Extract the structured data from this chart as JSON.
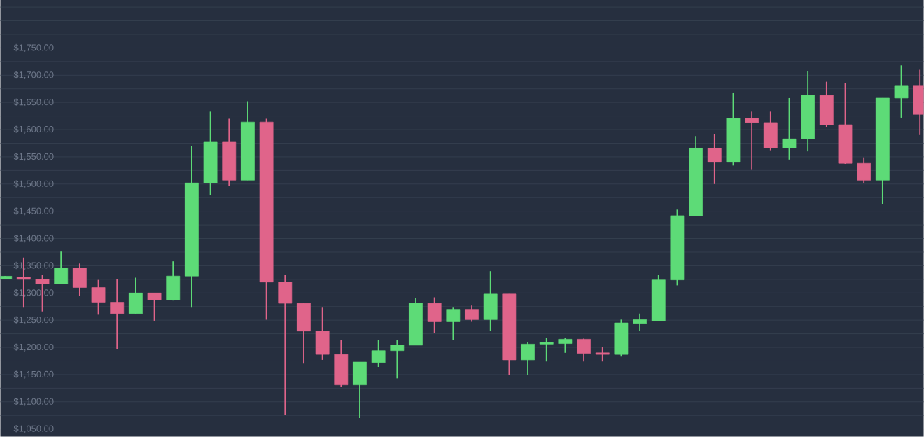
{
  "chart_data": {
    "type": "candlestick",
    "categories": [
      null,
      null,
      null,
      null,
      null,
      null,
      null,
      null,
      null,
      null,
      null,
      null,
      null,
      null,
      null,
      null,
      null,
      null,
      null,
      null,
      null,
      null,
      null,
      null,
      null,
      null,
      null,
      null,
      null,
      null,
      null,
      null,
      null,
      null,
      null,
      null,
      null,
      null,
      null,
      null,
      null,
      null,
      null,
      null,
      null,
      null,
      null,
      null,
      null,
      null
    ],
    "ohlc": [
      [
        1326,
        1331,
        1326,
        1331
      ],
      [
        1329,
        1365,
        1273,
        1325
      ],
      [
        1325,
        1333,
        1266,
        1317
      ],
      [
        1317,
        1376,
        1317,
        1346
      ],
      [
        1346,
        1354,
        1294,
        1310
      ],
      [
        1310,
        1324,
        1260,
        1283
      ],
      [
        1283,
        1326,
        1197,
        1262
      ],
      [
        1262,
        1328,
        1262,
        1300
      ],
      [
        1300,
        1300,
        1249,
        1287
      ],
      [
        1287,
        1358,
        1286,
        1331
      ],
      [
        1331,
        1570,
        1273,
        1502
      ],
      [
        1502,
        1633,
        1480,
        1577
      ],
      [
        1577,
        1620,
        1496,
        1507
      ],
      [
        1507,
        1652,
        1507,
        1614
      ],
      [
        1614,
        1620,
        1251,
        1320
      ],
      [
        1320,
        1333,
        1076,
        1281
      ],
      [
        1281,
        1281,
        1170,
        1230
      ],
      [
        1230,
        1273,
        1177,
        1187
      ],
      [
        1187,
        1214,
        1127,
        1131
      ],
      [
        1131,
        1173,
        1070,
        1173
      ],
      [
        1172,
        1214,
        1164,
        1194
      ],
      [
        1194,
        1213,
        1143,
        1204
      ],
      [
        1204,
        1290,
        1204,
        1281
      ],
      [
        1281,
        1292,
        1226,
        1247
      ],
      [
        1247,
        1273,
        1213,
        1270
      ],
      [
        1270,
        1277,
        1247,
        1251
      ],
      [
        1251,
        1340,
        1230,
        1298
      ],
      [
        1298,
        1298,
        1149,
        1177
      ],
      [
        1177,
        1209,
        1149,
        1206
      ],
      [
        1206,
        1217,
        1174,
        1209
      ],
      [
        1207,
        1217,
        1190,
        1215
      ],
      [
        1215,
        1216,
        1174,
        1189
      ],
      [
        1190,
        1200,
        1174,
        1187
      ],
      [
        1187,
        1251,
        1183,
        1245
      ],
      [
        1244,
        1262,
        1230,
        1251
      ],
      [
        1249,
        1333,
        1249,
        1324
      ],
      [
        1324,
        1453,
        1314,
        1442
      ],
      [
        1442,
        1588,
        1442,
        1566
      ],
      [
        1566,
        1592,
        1500,
        1540
      ],
      [
        1540,
        1667,
        1534,
        1621
      ],
      [
        1621,
        1633,
        1526,
        1613
      ],
      [
        1613,
        1633,
        1562,
        1566
      ],
      [
        1566,
        1658,
        1545,
        1583
      ],
      [
        1583,
        1708,
        1560,
        1663
      ],
      [
        1663,
        1688,
        1605,
        1609
      ],
      [
        1609,
        1686,
        1537,
        1538
      ],
      [
        1538,
        1549,
        1502,
        1507
      ],
      [
        1507,
        1658,
        1463,
        1658
      ],
      [
        1658,
        1718,
        1622,
        1680
      ],
      [
        1680,
        1710,
        1590,
        1628
      ]
    ],
    "colors": [
      "#5ddb77",
      "#e0648a",
      "#e0648a",
      "#5ddb77",
      "#e0648a",
      "#e0648a",
      "#e0648a",
      "#5ddb77",
      "#e0648a",
      "#5ddb77",
      "#5ddb77",
      "#5ddb77",
      "#e0648a",
      "#5ddb77",
      "#e0648a",
      "#e0648a",
      "#e0648a",
      "#e0648a",
      "#e0648a",
      "#5ddb77",
      "#5ddb77",
      "#5ddb77",
      "#5ddb77",
      "#e0648a",
      "#5ddb77",
      "#e0648a",
      "#5ddb77",
      "#e0648a",
      "#5ddb77",
      "#5ddb77",
      "#5ddb77",
      "#e0648a",
      "#e0648a",
      "#5ddb77",
      "#5ddb77",
      "#5ddb77",
      "#5ddb77",
      "#5ddb77",
      "#e0648a",
      "#5ddb77",
      "#e0648a",
      "#e0648a",
      "#5ddb77",
      "#5ddb77",
      "#e0648a",
      "#e0648a",
      "#e0648a",
      "#5ddb77",
      "#5ddb77",
      "#e0648a"
    ],
    "ylim": [
      1036,
      1838
    ],
    "yticks": [
      {
        "value": 1050,
        "label": "$1,050.00"
      },
      {
        "value": 1075,
        "label": null
      },
      {
        "value": 1100,
        "label": "$1,100.00"
      },
      {
        "value": 1125,
        "label": null
      },
      {
        "value": 1150,
        "label": "$1,150.00"
      },
      {
        "value": 1175,
        "label": null
      },
      {
        "value": 1200,
        "label": "$1,200.00"
      },
      {
        "value": 1225,
        "label": null
      },
      {
        "value": 1250,
        "label": "$1,250.00"
      },
      {
        "value": 1275,
        "label": null
      },
      {
        "value": 1300,
        "label": "$1,300.00"
      },
      {
        "value": 1325,
        "label": null
      },
      {
        "value": 1350,
        "label": "$1,350.00"
      },
      {
        "value": 1375,
        "label": null
      },
      {
        "value": 1400,
        "label": "$1,400.00"
      },
      {
        "value": 1425,
        "label": null
      },
      {
        "value": 1450,
        "label": "$1,450.00"
      },
      {
        "value": 1475,
        "label": null
      },
      {
        "value": 1500,
        "label": "$1,500.00"
      },
      {
        "value": 1525,
        "label": null
      },
      {
        "value": 1550,
        "label": "$1,550.00"
      },
      {
        "value": 1575,
        "label": null
      },
      {
        "value": 1600,
        "label": "$1,600.00"
      },
      {
        "value": 1625,
        "label": null
      },
      {
        "value": 1650,
        "label": "$1,650.00"
      },
      {
        "value": 1675,
        "label": null
      },
      {
        "value": 1700,
        "label": "$1,700.00"
      },
      {
        "value": 1725,
        "label": null
      },
      {
        "value": 1750,
        "label": "$1,750.00"
      },
      {
        "value": 1775,
        "label": null
      },
      {
        "value": 1800,
        "label": null
      },
      {
        "value": 1825,
        "label": null
      }
    ],
    "grid": "y"
  }
}
